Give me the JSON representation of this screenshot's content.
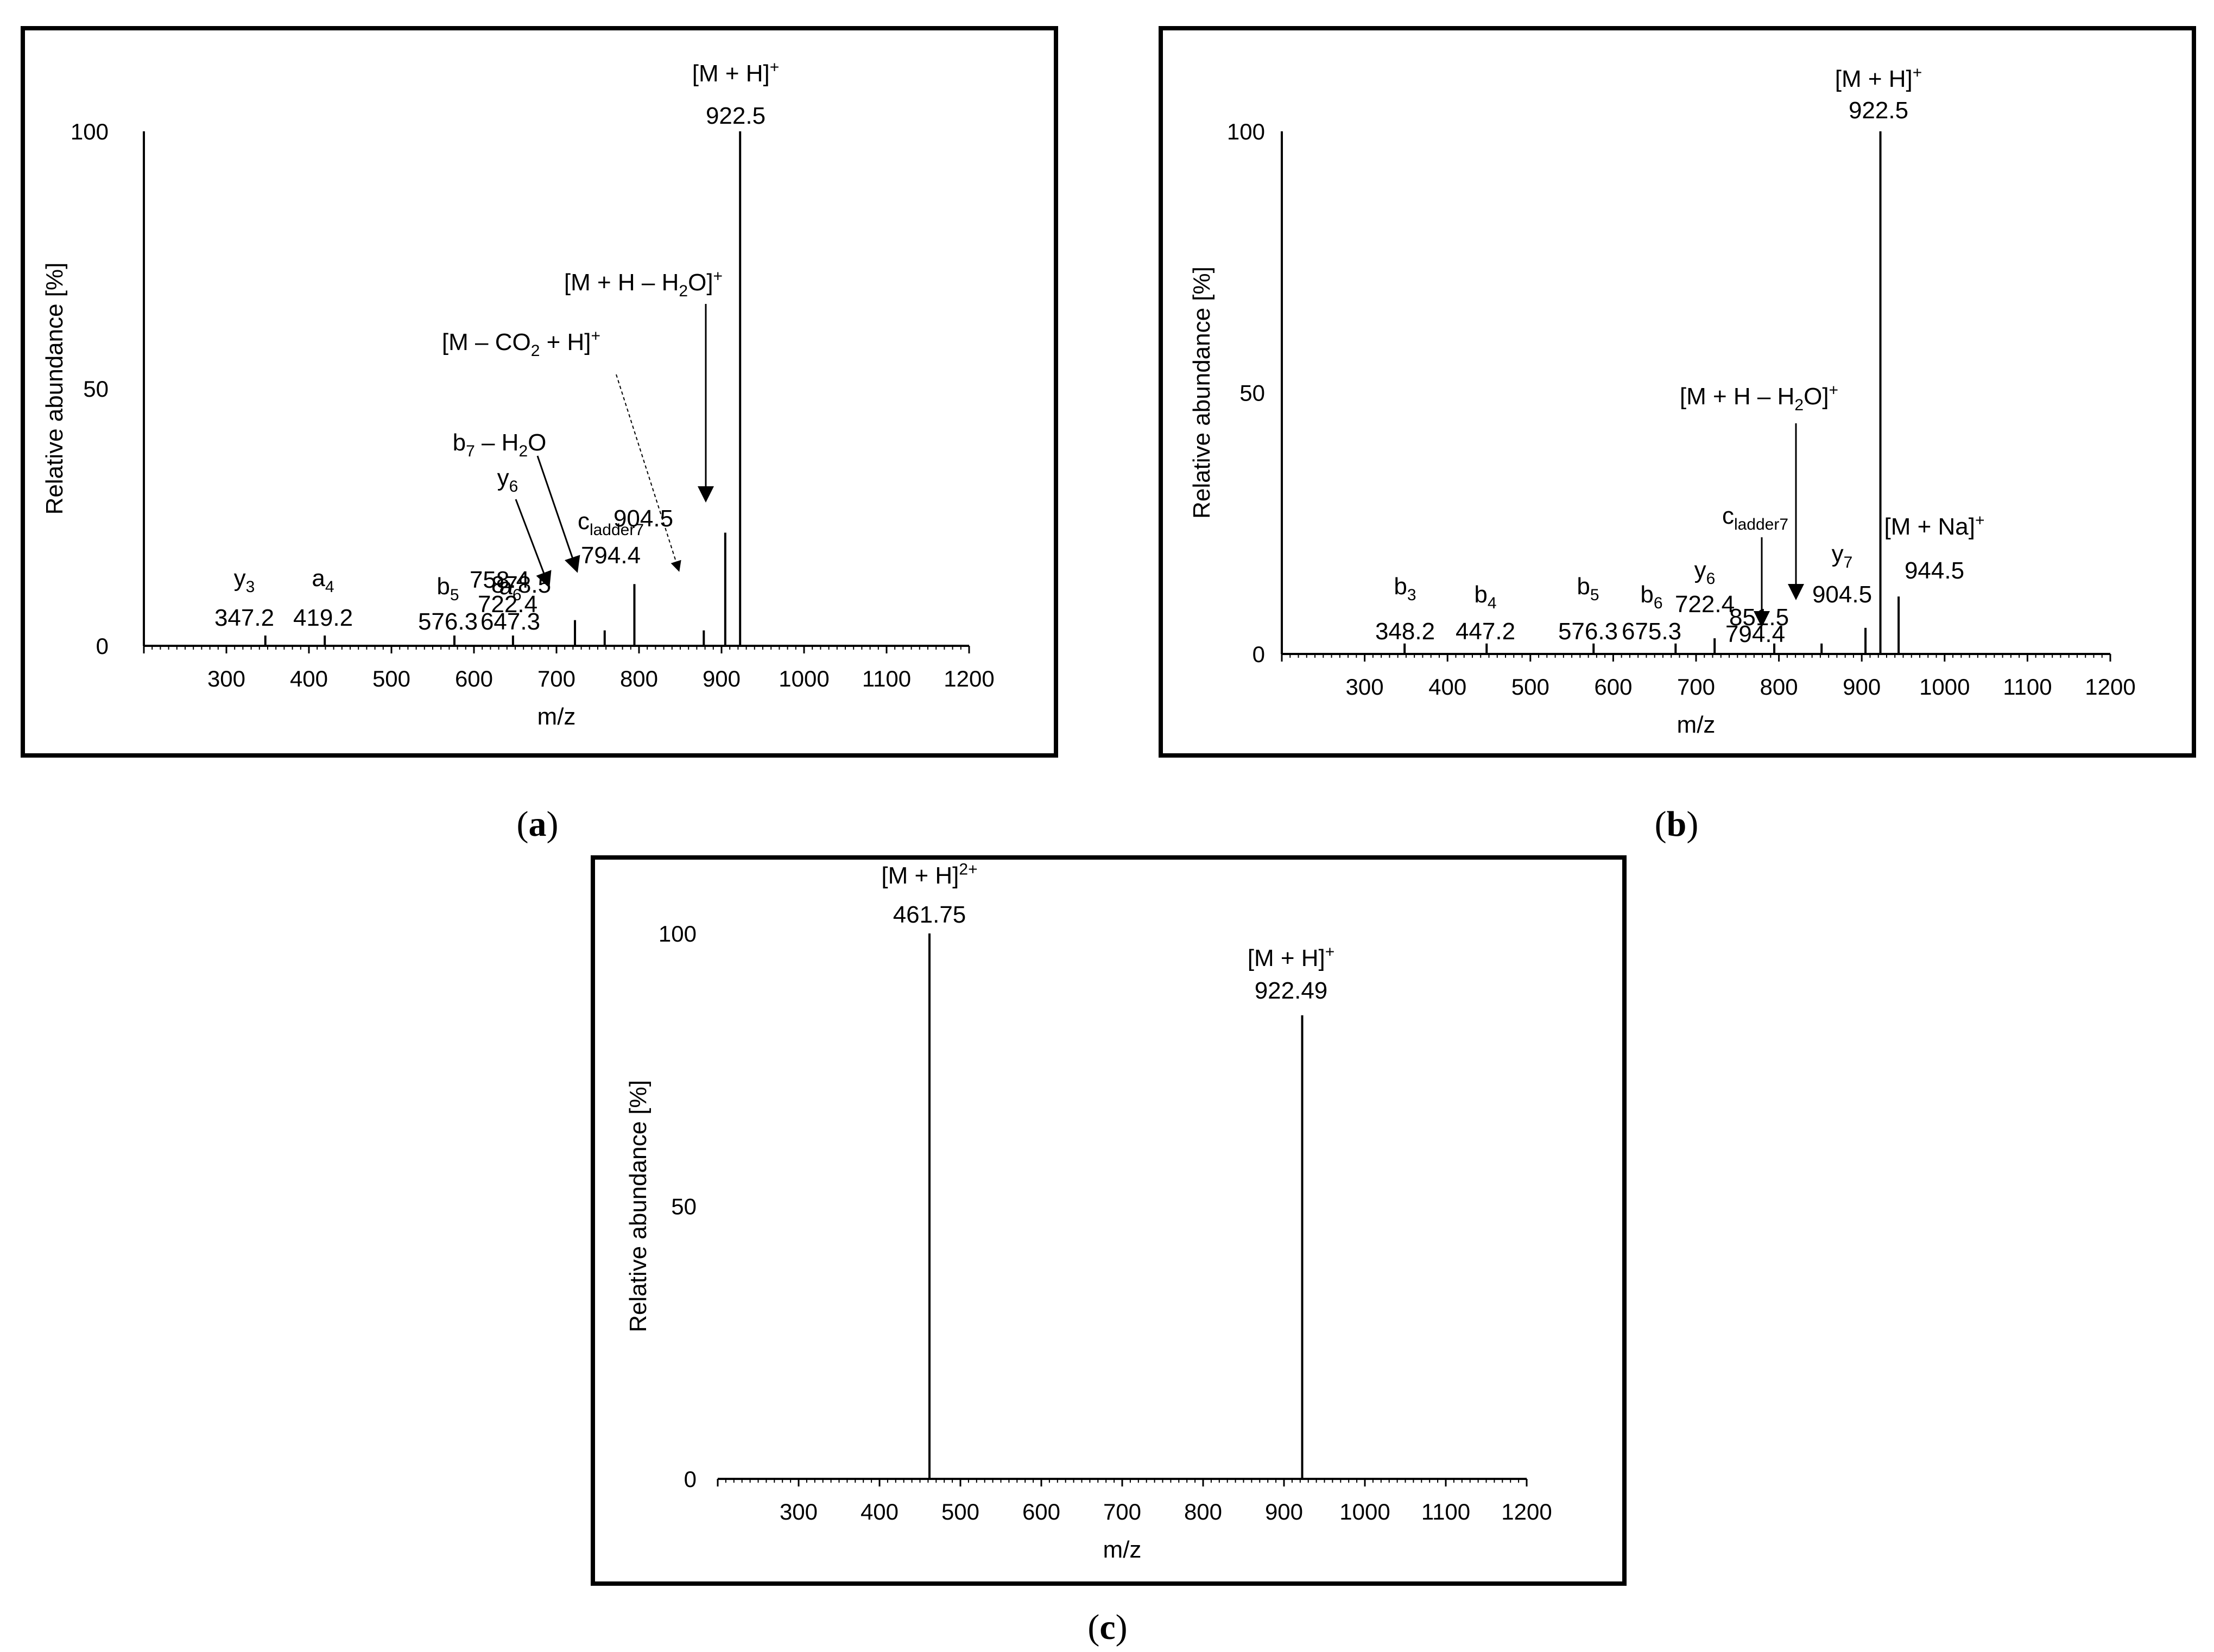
{
  "panels": [
    {
      "letter": "a",
      "chart_data": {
        "type": "bar",
        "xlabel": "m/z",
        "ylabel": "Relative abundance [%]",
        "xlim": [
          200,
          1200
        ],
        "ylim": [
          0,
          100
        ],
        "x_ticks": [
          "300",
          "400",
          "500",
          "600",
          "700",
          "800",
          "900",
          "1000",
          "1100",
          "1200"
        ],
        "y_ticks": [
          "0",
          "50",
          "100"
        ],
        "peaks": [
          {
            "x": 200,
            "y": 100
          },
          {
            "x": 347.2,
            "y": 2
          },
          {
            "x": 419.2,
            "y": 2
          },
          {
            "x": 576.3,
            "y": 2
          },
          {
            "x": 647.3,
            "y": 2
          },
          {
            "x": 722.4,
            "y": 5
          },
          {
            "x": 758.4,
            "y": 3
          },
          {
            "x": 794.4,
            "y": 12
          },
          {
            "x": 878.5,
            "y": 3
          },
          {
            "x": 904.5,
            "y": 22
          },
          {
            "x": 922.5,
            "y": 100
          }
        ],
        "annotations": [
          {
            "ion": {
              "base": "[M + H]",
              "sup": "+"
            },
            "mz": "922.5"
          },
          {
            "ion": {
              "base": "[M + H – H",
              "sub": "2",
              "tail": "O]",
              "sup": "+"
            },
            "mz": "904.5"
          },
          {
            "ion": {
              "base": "[M – CO",
              "sub": "2",
              "tail": " + H]",
              "sup": "+"
            },
            "mz": "878.5"
          },
          {
            "ion": {
              "base": "b",
              "sub": "7",
              "tail": " – H",
              "sub2": "2",
              "tail2": "O"
            },
            "mz": "758.4"
          },
          {
            "ion": {
              "base": "y",
              "sub": "6"
            },
            "mz": "722.4"
          },
          {
            "ion": {
              "base": "c",
              "sub": "ladder7"
            },
            "mz": "794.4"
          },
          {
            "ion": {
              "base": "y",
              "sub": "3"
            },
            "mz": "347.2"
          },
          {
            "ion": {
              "base": "a",
              "sub": "4"
            },
            "mz": "419.2"
          },
          {
            "ion": {
              "base": "b",
              "sub": "5"
            },
            "mz": "576.3"
          },
          {
            "ion": {
              "base": "a",
              "sub": "6"
            },
            "mz": "647.3"
          }
        ]
      }
    },
    {
      "letter": "b",
      "chart_data": {
        "type": "bar",
        "xlabel": "m/z",
        "ylabel": "Relative abundance [%]",
        "xlim": [
          200,
          1200
        ],
        "ylim": [
          0,
          100
        ],
        "x_ticks": [
          "300",
          "400",
          "500",
          "600",
          "700",
          "800",
          "900",
          "1000",
          "1100",
          "1200"
        ],
        "y_ticks": [
          "0",
          "50",
          "100"
        ],
        "peaks": [
          {
            "x": 200,
            "y": 100
          },
          {
            "x": 348.2,
            "y": 2
          },
          {
            "x": 447.2,
            "y": 2
          },
          {
            "x": 576.3,
            "y": 2
          },
          {
            "x": 675.3,
            "y": 2
          },
          {
            "x": 722.4,
            "y": 3
          },
          {
            "x": 794.4,
            "y": 2
          },
          {
            "x": 851.5,
            "y": 2
          },
          {
            "x": 904.5,
            "y": 5
          },
          {
            "x": 922.5,
            "y": 100
          },
          {
            "x": 944.5,
            "y": 11
          }
        ],
        "annotations": [
          {
            "ion": {
              "base": "[M + H]",
              "sup": "+"
            },
            "mz": "922.5"
          },
          {
            "ion": {
              "base": "[M + H – H",
              "sub": "2",
              "tail": "O]",
              "sup": "+"
            },
            "mz": "851.5"
          },
          {
            "ion": {
              "base": "[M + Na]",
              "sup": "+"
            },
            "mz": "944.5"
          },
          {
            "ion": {
              "base": "y",
              "sub": "7"
            },
            "mz": "904.5"
          },
          {
            "ion": {
              "base": "c",
              "sub": "ladder7"
            },
            "mz": "794.4"
          },
          {
            "ion": {
              "base": "y",
              "sub": "6"
            },
            "mz": "722.4"
          },
          {
            "ion": {
              "base": "b",
              "sub": "3"
            },
            "mz": "348.2"
          },
          {
            "ion": {
              "base": "b",
              "sub": "4"
            },
            "mz": "447.2"
          },
          {
            "ion": {
              "base": "b",
              "sub": "5"
            },
            "mz": "576.3"
          },
          {
            "ion": {
              "base": "b",
              "sub": "6"
            },
            "mz": "675.3"
          }
        ]
      }
    },
    {
      "letter": "c",
      "chart_data": {
        "type": "bar",
        "xlabel": "m/z",
        "ylabel": "Relative abundance [%]",
        "xlim": [
          200,
          1200
        ],
        "ylim": [
          0,
          100
        ],
        "x_ticks": [
          "300",
          "400",
          "500",
          "600",
          "700",
          "800",
          "900",
          "1000",
          "1100",
          "1200"
        ],
        "y_ticks": [
          "0",
          "50",
          "100"
        ],
        "peaks": [
          {
            "x": 461.75,
            "y": 100
          },
          {
            "x": 922.49,
            "y": 85
          }
        ],
        "annotations": [
          {
            "ion": {
              "base": "[M + H]",
              "sup": "2+"
            },
            "mz": "461.75"
          },
          {
            "ion": {
              "base": "[M + H]",
              "sup": "+"
            },
            "mz": "922.49"
          }
        ]
      }
    }
  ]
}
